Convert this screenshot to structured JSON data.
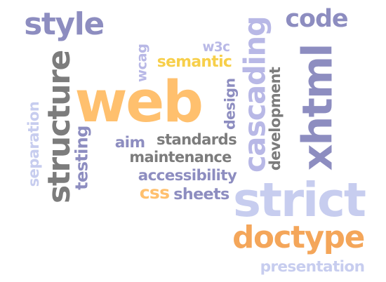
{
  "colors": {
    "purple": "#8d8dc0",
    "light_purple": "#b8b8e6",
    "gray": "#7c7c7c",
    "light_gray": "#9a9a9a",
    "orange": "#f4a65a",
    "light_orange": "#ffc06e",
    "yellow": "#f7cf4a",
    "light_blue": "#c7cdef"
  },
  "words": [
    {
      "id": "style",
      "text": "style",
      "color": "purple"
    },
    {
      "id": "code",
      "text": "code",
      "color": "purple"
    },
    {
      "id": "w3c",
      "text": "w3c",
      "color": "light_purple"
    },
    {
      "id": "wcag",
      "text": "wcag",
      "color": "light_purple"
    },
    {
      "id": "semantic",
      "text": "semantic",
      "color": "yellow"
    },
    {
      "id": "web",
      "text": "web",
      "color": "light_orange"
    },
    {
      "id": "structure",
      "text": "structure",
      "color": "gray"
    },
    {
      "id": "separation",
      "text": "separation",
      "color": "light_blue"
    },
    {
      "id": "testing",
      "text": "testing",
      "color": "purple"
    },
    {
      "id": "design",
      "text": "design",
      "color": "purple"
    },
    {
      "id": "cascading",
      "text": "cascading",
      "color": "light_purple"
    },
    {
      "id": "development",
      "text": "development",
      "color": "gray"
    },
    {
      "id": "xhtml",
      "text": "xhtml",
      "color": "purple"
    },
    {
      "id": "aim",
      "text": "aim",
      "color": "purple"
    },
    {
      "id": "standards",
      "text": "standards",
      "color": "gray"
    },
    {
      "id": "maintenance",
      "text": "maintenance",
      "color": "gray"
    },
    {
      "id": "accessibility",
      "text": "accessibility",
      "color": "purple"
    },
    {
      "id": "css",
      "text": "css",
      "color": "light_orange"
    },
    {
      "id": "sheets",
      "text": "sheets",
      "color": "purple"
    },
    {
      "id": "strict",
      "text": "strict",
      "color": "light_blue"
    },
    {
      "id": "doctype",
      "text": "doctype",
      "color": "orange"
    },
    {
      "id": "presentation",
      "text": "presentation",
      "color": "light_blue"
    }
  ]
}
